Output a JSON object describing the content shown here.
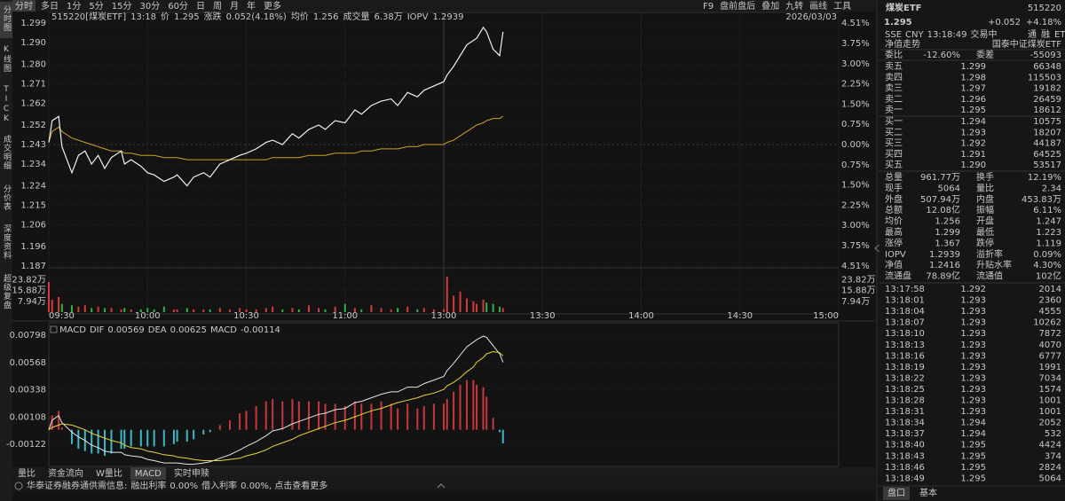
{
  "sidebar": {
    "tabs": [
      "分时图",
      "K线图",
      "TICK",
      "成交明细",
      "分价表",
      "深度资料",
      "超级复盘"
    ],
    "active": 0
  },
  "toolbar": {
    "periods": [
      "分时",
      "多日",
      "1分",
      "5分",
      "15分",
      "30分",
      "60分",
      "日",
      "周",
      "月",
      "年",
      "更多"
    ],
    "active": 0,
    "tools": [
      "F9",
      "盘前盘后",
      "叠加",
      "九转",
      "画线",
      "工具"
    ]
  },
  "chart_data": [
    {
      "type": "line",
      "title": "515220[煤炭ETF]",
      "time": "13:18",
      "date": "2026/03/03",
      "change_label": "涨跌",
      "change": "0.052(4.18%)",
      "volume_label": "成交量",
      "volume": "6.38万",
      "iopv_label": "IOPV",
      "iopv": "1.2939",
      "up_color": "#e8453c",
      "down_color": "#2fb344",
      "grid": true,
      "x": [
        "09:30",
        "09:31",
        "09:33",
        "09:34",
        "09:37",
        "09:39",
        "09:41",
        "09:43",
        "09:45",
        "09:47",
        "09:49",
        "09:52",
        "09:53",
        "09:55",
        "09:58",
        "10:00",
        "10:02",
        "10:05",
        "10:08",
        "10:09",
        "10:12",
        "10:14",
        "10:17",
        "10:19",
        "10:22",
        "10:25",
        "10:28",
        "10:30",
        "10:33",
        "10:36",
        "10:38",
        "10:41",
        "10:44",
        "10:46",
        "10:49",
        "10:52",
        "10:54",
        "10:57",
        "11:00",
        "11:03",
        "11:05",
        "11:08",
        "11:11",
        "11:14",
        "11:16",
        "11:19",
        "11:22",
        "11:24",
        "11:27",
        "11:30",
        "13:01",
        "13:03",
        "13:05",
        "13:07",
        "13:09",
        "13:10",
        "13:12",
        "13:13",
        "13:15",
        "13:17",
        "13:18"
      ],
      "series": [
        {
          "name": "价",
          "color": "#f0f0f0",
          "values": [
            1.244,
            1.254,
            1.256,
            1.242,
            1.23,
            1.238,
            1.24,
            1.234,
            1.238,
            1.232,
            1.237,
            1.24,
            1.234,
            1.236,
            1.233,
            1.23,
            1.229,
            1.226,
            1.228,
            1.229,
            1.224,
            1.228,
            1.23,
            1.228,
            1.234,
            1.236,
            1.238,
            1.239,
            1.241,
            1.244,
            1.245,
            1.243,
            1.248,
            1.246,
            1.25,
            1.252,
            1.25,
            1.254,
            1.253,
            1.259,
            1.257,
            1.261,
            1.263,
            1.264,
            1.261,
            1.267,
            1.265,
            1.268,
            1.27,
            1.272,
            1.275,
            1.279,
            1.284,
            1.289,
            1.291,
            1.292,
            1.297,
            1.295,
            1.287,
            1.284,
            1.295
          ]
        },
        {
          "name": "均价",
          "color": "#c9a227",
          "values": [
            1.244,
            1.249,
            1.251,
            1.249,
            1.246,
            1.245,
            1.244,
            1.243,
            1.242,
            1.241,
            1.24,
            1.24,
            1.239,
            1.239,
            1.238,
            1.238,
            1.238,
            1.237,
            1.237,
            1.237,
            1.236,
            1.236,
            1.236,
            1.236,
            1.236,
            1.236,
            1.236,
            1.236,
            1.236,
            1.236,
            1.237,
            1.237,
            1.237,
            1.237,
            1.238,
            1.238,
            1.238,
            1.239,
            1.239,
            1.239,
            1.24,
            1.24,
            1.241,
            1.241,
            1.241,
            1.242,
            1.242,
            1.243,
            1.243,
            1.243,
            1.244,
            1.245,
            1.247,
            1.249,
            1.251,
            1.252,
            1.253,
            1.254,
            1.255,
            1.255,
            1.256
          ]
        }
      ],
      "ylim": [
        1.187,
        1.299
      ],
      "yticks": [
        1.299,
        {
          "value": 1.29,
          "label": "1.290"
        },
        {
          "value": 1.28,
          "label": "1.280"
        },
        1.271,
        1.262,
        1.252,
        1.243,
        1.234,
        1.224,
        1.215,
        1.206,
        1.196,
        1.187
      ],
      "y2lim": [
        -4.51,
        4.51
      ],
      "y2ticks": [
        {
          "value": 4.51,
          "label": "4.51%"
        },
        {
          "value": 3.75,
          "label": "3.75%"
        },
        {
          "value": 3.0,
          "label": "3.00%"
        },
        {
          "value": 2.25,
          "label": "2.25%"
        },
        {
          "value": 1.5,
          "label": "1.50%"
        },
        {
          "value": 0.75,
          "label": "0.75%"
        },
        {
          "value": 0,
          "label": "0.00%"
        },
        {
          "value": -0.75,
          "label": "0.75%"
        },
        {
          "value": -1.5,
          "label": "1.50%"
        },
        {
          "value": -2.25,
          "label": "2.25%"
        },
        {
          "value": -3.0,
          "label": "3.00%"
        },
        {
          "value": -3.75,
          "label": "3.75%"
        },
        {
          "value": -4.51,
          "label": "4.51%"
        }
      ],
      "xticks": [
        "09:30",
        "10:00",
        "10:30",
        "11:00",
        "13:00",
        "13:30",
        "14:00",
        "14:30",
        "15:00"
      ]
    },
    {
      "type": "bar",
      "up_color": "#d8393a",
      "down_color": "#2fb344",
      "x": [
        "09:30",
        "09:31",
        "09:33",
        "09:34",
        "09:37",
        "09:39",
        "09:41",
        "09:43",
        "09:45",
        "09:47",
        "09:49",
        "09:52",
        "09:53",
        "09:55",
        "09:58",
        "10:00",
        "10:02",
        "10:05",
        "10:08",
        "10:09",
        "10:12",
        "10:14",
        "10:17",
        "10:19",
        "10:22",
        "10:25",
        "10:28",
        "10:30",
        "10:33",
        "10:36",
        "10:38",
        "10:41",
        "10:44",
        "10:46",
        "10:49",
        "10:52",
        "10:54",
        "10:57",
        "11:00",
        "11:03",
        "11:05",
        "11:08",
        "11:11",
        "11:14",
        "11:16",
        "11:19",
        "11:22",
        "11:24",
        "11:27",
        "11:30",
        "13:01",
        "13:03",
        "13:05",
        "13:07",
        "13:09",
        "13:10",
        "13:12",
        "13:13",
        "13:15",
        "13:17",
        "13:18"
      ],
      "values": [
        22,
        9,
        11,
        6,
        5,
        4,
        5,
        3,
        4,
        3,
        3,
        2,
        3,
        2,
        2,
        3,
        2,
        4,
        2,
        2,
        3,
        2,
        2,
        2,
        3,
        2,
        3,
        2,
        2,
        3,
        4,
        2,
        3,
        2,
        5,
        3,
        2,
        4,
        6,
        3,
        2,
        5,
        3,
        2,
        3,
        4,
        2,
        3,
        2,
        2,
        26,
        12,
        15,
        10,
        8,
        6,
        9,
        7,
        6,
        4,
        3
      ],
      "ylim": [
        0,
        31.76
      ],
      "yticks": [
        {
          "value": 23.82,
          "label": "23.82万"
        },
        {
          "value": 15.88,
          "label": "15.88万"
        },
        {
          "value": 7.94,
          "label": "7.94万"
        }
      ]
    },
    {
      "type": "macd",
      "title": "MACD",
      "bar_up_color": "#c8383a",
      "bar_down_color": "#3cb8c8",
      "up_color": "#e8453c",
      "down_color": "#2fb344",
      "x": [
        "09:30",
        "09:31",
        "09:33",
        "09:34",
        "09:37",
        "09:39",
        "09:41",
        "09:43",
        "09:45",
        "09:47",
        "09:49",
        "09:52",
        "09:53",
        "09:55",
        "09:58",
        "10:00",
        "10:02",
        "10:05",
        "10:08",
        "10:09",
        "10:12",
        "10:14",
        "10:17",
        "10:19",
        "10:22",
        "10:25",
        "10:28",
        "10:30",
        "10:33",
        "10:36",
        "10:38",
        "10:41",
        "10:44",
        "10:46",
        "10:49",
        "10:52",
        "10:54",
        "10:57",
        "11:00",
        "11:03",
        "11:05",
        "11:08",
        "11:11",
        "11:14",
        "11:16",
        "11:19",
        "11:22",
        "11:24",
        "11:27",
        "11:30",
        "13:01",
        "13:03",
        "13:05",
        "13:07",
        "13:09",
        "13:10",
        "13:12",
        "13:13",
        "13:15",
        "13:17",
        "13:18"
      ],
      "series": [
        {
          "name": "DIF",
          "color": "#e6e6e6",
          "values": [
            0.0,
            0.0008,
            0.0012,
            0.0006,
            -0.0002,
            -0.0006,
            -0.0009,
            -0.0013,
            -0.0015,
            -0.0018,
            -0.0019,
            -0.0019,
            -0.0021,
            -0.0022,
            -0.0023,
            -0.0025,
            -0.0026,
            -0.0028,
            -0.0028,
            -0.0028,
            -0.0029,
            -0.0029,
            -0.0028,
            -0.0027,
            -0.0024,
            -0.0021,
            -0.0017,
            -0.0014,
            -0.001,
            -0.0005,
            -0.0001,
            0.0001,
            0.0005,
            0.0007,
            0.001,
            0.0013,
            0.0014,
            0.0017,
            0.0018,
            0.0023,
            0.0024,
            0.0027,
            0.003,
            0.0032,
            0.0032,
            0.0036,
            0.0036,
            0.0039,
            0.0042,
            0.0045,
            0.005,
            0.0056,
            0.0063,
            0.007,
            0.0074,
            0.0076,
            0.0079,
            0.0078,
            0.0071,
            0.0064,
            0.00569
          ]
        },
        {
          "name": "DEA",
          "color": "#e8d43c",
          "values": [
            0.0,
            0.0002,
            0.0004,
            0.0005,
            0.0004,
            0.0002,
            0.0,
            -0.0003,
            -0.0005,
            -0.0007,
            -0.0009,
            -0.0011,
            -0.0013,
            -0.0015,
            -0.0016,
            -0.0018,
            -0.0019,
            -0.0021,
            -0.0022,
            -0.0023,
            -0.0024,
            -0.0025,
            -0.0026,
            -0.0026,
            -0.0026,
            -0.0025,
            -0.0024,
            -0.0022,
            -0.002,
            -0.0017,
            -0.0014,
            -0.0011,
            -0.0008,
            -0.0005,
            -0.0002,
            0.0001,
            0.0003,
            0.0006,
            0.0008,
            0.0011,
            0.0013,
            0.0016,
            0.0018,
            0.0021,
            0.0023,
            0.0025,
            0.0027,
            0.0029,
            0.0031,
            0.0034,
            0.0037,
            0.004,
            0.0044,
            0.0049,
            0.0053,
            0.0057,
            0.0061,
            0.0064,
            0.0066,
            0.0065,
            0.00625
          ]
        },
        {
          "name": "MACD",
          "color": "#d43cd4",
          "values": [
            0.0,
            0.0012,
            0.0016,
            0.0002,
            -0.0012,
            -0.0016,
            -0.0018,
            -0.002,
            -0.002,
            -0.0022,
            -0.002,
            -0.0016,
            -0.0016,
            -0.0014,
            -0.0014,
            -0.0014,
            -0.0014,
            -0.0014,
            -0.0012,
            -0.001,
            -0.001,
            -0.0008,
            -0.0004,
            -0.0002,
            0.0004,
            0.0008,
            0.0014,
            0.0016,
            0.002,
            0.0024,
            0.0026,
            0.0024,
            0.0026,
            0.0024,
            0.0024,
            0.0024,
            0.0022,
            0.0022,
            0.002,
            0.0024,
            0.0022,
            0.0022,
            0.0024,
            0.0022,
            0.0018,
            0.0022,
            0.0018,
            0.002,
            0.0022,
            0.0022,
            0.0026,
            0.0032,
            0.0038,
            0.0042,
            0.0042,
            0.0038,
            0.0036,
            0.0028,
            0.001,
            -0.0002,
            -0.00114
          ]
        }
      ],
      "ylim": [
        -0.00294,
        0.00873
      ],
      "yticks": [
        0.00798,
        0.00568,
        0.00338,
        0.00108,
        -0.00122
      ]
    }
  ],
  "bottom_tabs": {
    "items": [
      "量比",
      "资金流向",
      "W量比",
      "MACD",
      "实时申赎"
    ],
    "active": 3
  },
  "notice": {
    "source": "华泰证券融券通供需信息:",
    "items": [
      {
        "label": "融出利率",
        "value": "0.00%"
      },
      {
        "label": "借入利率",
        "value": "0.00%"
      }
    ],
    "link": ", 点击查看更多"
  },
  "quote_panel": {
    "name": "煤炭ETF",
    "code": "515220",
    "price": "1.295",
    "change": "+0.052",
    "change_pct": "+4.18%",
    "status": [
      "SSE",
      "CNY",
      "13:18:49",
      "交易中"
    ],
    "badges": [
      "通",
      "融",
      "ETF"
    ],
    "nav_label": "净值走势",
    "fund_name": "国泰中证煤炭ETF",
    "up_color": "#e8453c",
    "down_color": "#2fb344",
    "plain_color": "#dcdcdc",
    "ratio": [
      "委比",
      "-12.60%",
      "委差",
      "-55093"
    ],
    "asks": [
      [
        "卖五",
        "1.299",
        "66348"
      ],
      [
        "卖四",
        "1.298",
        "115503"
      ],
      [
        "卖三",
        "1.297",
        "19182"
      ],
      [
        "卖二",
        "1.296",
        "26459"
      ],
      [
        "卖一",
        "1.295",
        "18612"
      ]
    ],
    "bids": [
      [
        "买一",
        "1.294",
        "10575"
      ],
      [
        "买二",
        "1.293",
        "18207"
      ],
      [
        "买三",
        "1.292",
        "44187"
      ],
      [
        "买四",
        "1.291",
        "64525"
      ],
      [
        "买五",
        "1.290",
        "53517"
      ]
    ],
    "stats": [
      [
        "总量",
        "961.77万",
        "换手",
        "12.19%"
      ],
      [
        "现手",
        "5064",
        "量比",
        "2.34"
      ],
      [
        "外盘",
        "507.94万",
        "内盘",
        "453.83万"
      ],
      [
        "总额",
        "12.08亿",
        "振幅",
        "6.11%"
      ],
      [
        "均价",
        "1.256",
        "开盘",
        "1.247"
      ],
      [
        "最高",
        "1.299",
        "最低",
        "1.223"
      ],
      [
        "涨停",
        "1.367",
        "跌停",
        "1.119"
      ],
      [
        "IOPV",
        "1.2939",
        "溢折率",
        "0.09%"
      ],
      [
        "净值",
        "1.2416",
        "升贴水率",
        "4.30%"
      ],
      [
        "流通盘",
        "78.89亿",
        "流通值",
        "102亿"
      ]
    ],
    "stat_colors": [
      [
        "#dcdcdc",
        "#dcdcdc"
      ],
      [
        "#dcdcdc",
        "#dcdcdc"
      ],
      [
        "#e8453c",
        "#2fb344"
      ],
      [
        "#dcdcdc",
        "#dcdcdc"
      ],
      [
        "#e8453c",
        "#e8453c"
      ],
      [
        "#e8453c",
        "#2fb344"
      ],
      [
        "#e8453c",
        "#2fb344"
      ],
      [
        "#dcdcdc",
        "#e8453c"
      ],
      [
        "#dcdcdc",
        "#e8453c"
      ],
      [
        "#dcdcdc",
        "#dcdcdc"
      ]
    ],
    "ticks": [
      [
        "13:17:58",
        "1.292",
        "2014"
      ],
      [
        "13:18:01",
        "1.293",
        "2360"
      ],
      [
        "13:18:04",
        "1.293",
        "4555"
      ],
      [
        "13:18:07",
        "1.293",
        "10262"
      ],
      [
        "13:18:10",
        "1.293",
        "7872"
      ],
      [
        "13:18:13",
        "1.293",
        "4070"
      ],
      [
        "13:18:16",
        "1.293",
        "6777"
      ],
      [
        "13:18:19",
        "1.293",
        "1991"
      ],
      [
        "13:18:22",
        "1.293",
        "7034"
      ],
      [
        "13:18:25",
        "1.293",
        "1574"
      ],
      [
        "13:18:28",
        "1.293",
        "1001"
      ],
      [
        "13:18:31",
        "1.293",
        "1001"
      ],
      [
        "13:18:34",
        "1.294",
        "2052"
      ],
      [
        "13:18:37",
        "1.294",
        "532"
      ],
      [
        "13:18:40",
        "1.295",
        "4424"
      ],
      [
        "13:18:43",
        "1.295",
        "374"
      ],
      [
        "13:18:46",
        "1.295",
        "2824"
      ],
      [
        "13:18:49",
        "1.295",
        "5064"
      ]
    ],
    "tick_volume_colors": [
      "#2fb344",
      "#e8453c",
      "#e8453c",
      "#e8453c",
      "#e8453c",
      "#e8453c",
      "#e8453c",
      "#e8453c",
      "#e8453c",
      "#e8453c",
      "#e8453c",
      "#e8453c",
      "#e8453c",
      "#2fb344",
      "#e8453c",
      "#e8453c",
      "#e8453c",
      "#e8453c"
    ],
    "tabs": [
      "盘口",
      "基本"
    ],
    "active_tab": 0
  }
}
